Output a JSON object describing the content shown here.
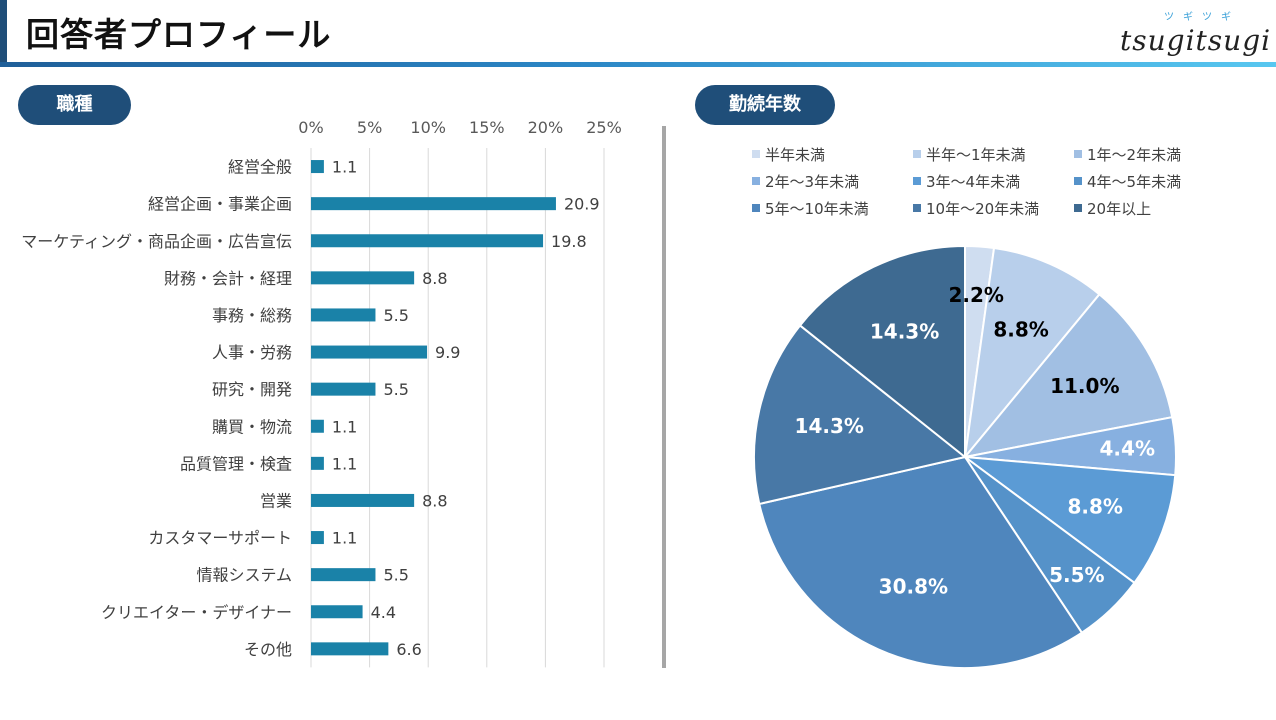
{
  "header": {
    "title": "回答者プロフィール",
    "logo_text": "tsugitsugi",
    "logo_ruby": "ツギツギ"
  },
  "sections": {
    "job_label": "職種",
    "years_label": "勤続年数"
  },
  "colors": {
    "accent": "#1f4e79",
    "bar": "#1a82a8"
  },
  "chart_data": [
    {
      "type": "bar",
      "orientation": "horizontal",
      "title": "職種",
      "categories": [
        "経営全般",
        "経営企画・事業企画",
        "マーケティング・商品企画・広告宣伝",
        "財務・会計・経理",
        "事務・総務",
        "人事・労務",
        "研究・開発",
        "購買・物流",
        "品質管理・検査",
        "営業",
        "カスタマーサポート",
        "情報システム",
        "クリエイター・デザイナー",
        "その他"
      ],
      "values": [
        1.1,
        20.9,
        19.8,
        8.8,
        5.5,
        9.9,
        5.5,
        1.1,
        1.1,
        8.8,
        1.1,
        5.5,
        4.4,
        6.6
      ],
      "value_labels": [
        "1.1",
        "20.9",
        "19.8",
        "8.8",
        "5.5",
        "9.9",
        "5.5",
        "1.1",
        "1.1",
        "8.8",
        "1.1",
        "5.5",
        "4.4",
        "6.6"
      ],
      "xlim": [
        0,
        25
      ],
      "xticks": [
        "0%",
        "5%",
        "10%",
        "15%",
        "20%",
        "25%"
      ],
      "axis_position": "top",
      "grid": true
    },
    {
      "type": "pie",
      "title": "勤続年数",
      "legend_position": "top",
      "labels": [
        "半年未満",
        "半年～1年未満",
        "1年～2年未満",
        "2年～3年未満",
        "3年～4年未満",
        "4年～5年未満",
        "5年～10年未満",
        "10年～20年未満",
        "20年以上"
      ],
      "values": [
        2.2,
        8.8,
        11.0,
        4.4,
        8.8,
        5.5,
        30.8,
        14.3,
        14.3
      ],
      "value_labels": [
        "2.2%",
        "8.8%",
        "11.0%",
        "4.4%",
        "8.8%",
        "5.5%",
        "30.8%",
        "14.3%",
        "14.3%"
      ],
      "colors": [
        "#cfddf0",
        "#b8cfeb",
        "#a1bfe3",
        "#87b0e0",
        "#5b9bd5",
        "#5592c9",
        "#4f86bd",
        "#4878a6",
        "#3e6a91"
      ],
      "label_colors": [
        "#000000",
        "#000000",
        "#000000",
        "#ffffff",
        "#ffffff",
        "#ffffff",
        "#ffffff",
        "#ffffff",
        "#ffffff"
      ]
    }
  ]
}
